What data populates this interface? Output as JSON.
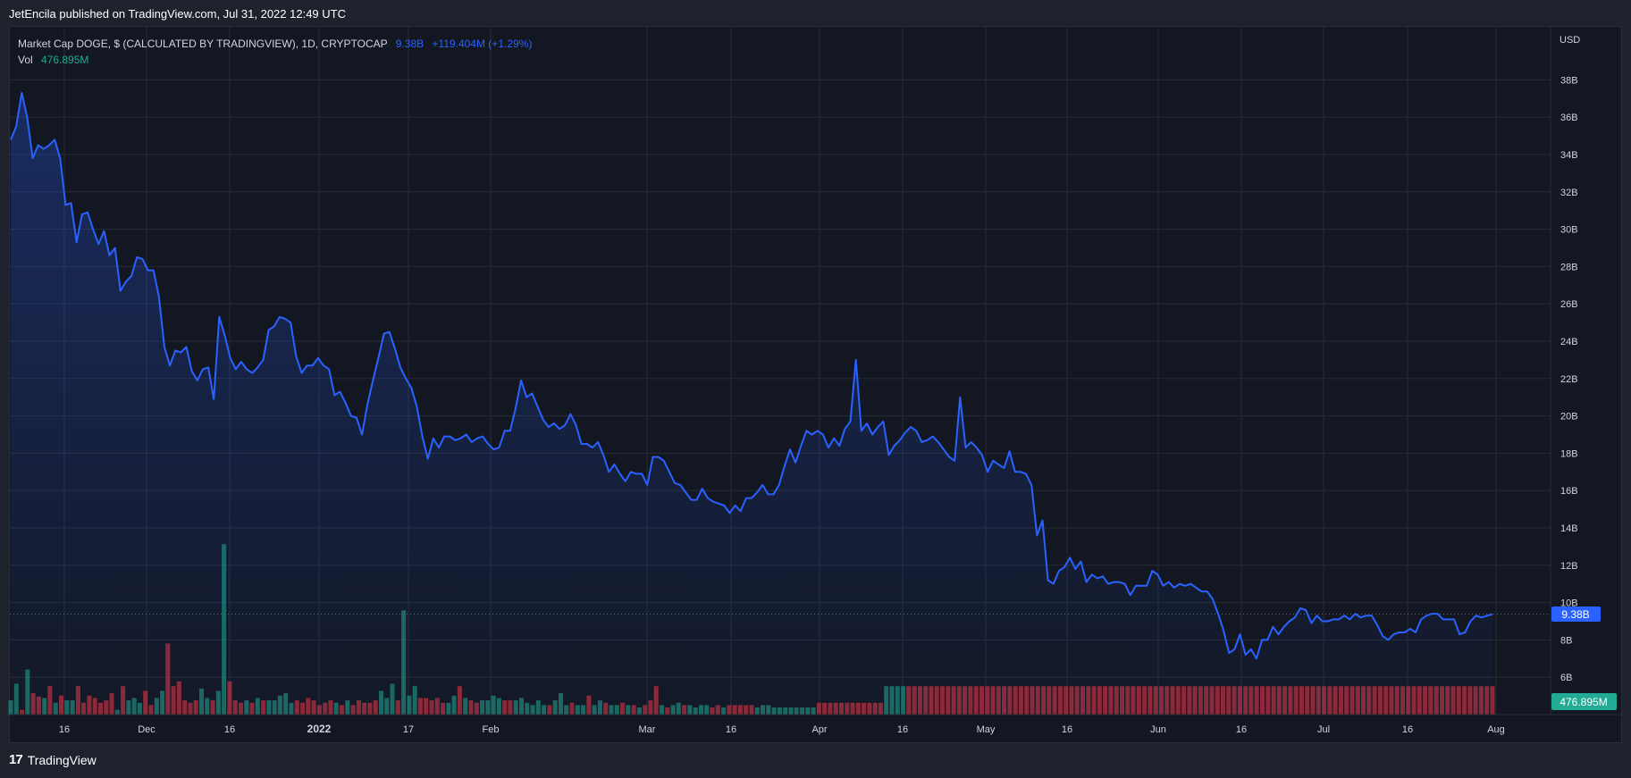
{
  "header": {
    "published": "JetEncila published on TradingView.com, Jul 31, 2022 12:49 UTC"
  },
  "legend": {
    "symbol": "Market Cap DOGE, $ (CALCULATED BY TRADINGVIEW), 1D, CRYPTOCAP",
    "last": "9.38B",
    "change": "+119.404M (+1.29%)",
    "vol_label": "Vol",
    "vol_value": "476.895M"
  },
  "footer": {
    "brand": "TradingView"
  },
  "colors": {
    "line": "#2962ff",
    "up": "#22ab94",
    "down": "#f23645",
    "bg": "#131722",
    "grid": "#262b37"
  },
  "chart_data": {
    "type": "line",
    "currency_label": "USD",
    "y_unit": "billions USD",
    "ylim": [
      4,
      41
    ],
    "y_ticks": [
      "6B",
      "8B",
      "10B",
      "12B",
      "14B",
      "16B",
      "18B",
      "20B",
      "22B",
      "24B",
      "26B",
      "28B",
      "30B",
      "32B",
      "34B",
      "36B",
      "38B"
    ],
    "x_ticks": [
      "16",
      "Dec",
      "16",
      "2022",
      "17",
      "Feb",
      "Mar",
      "16",
      "Apr",
      "16",
      "May",
      "16",
      "Jun",
      "16",
      "Jul",
      "16",
      "Aug"
    ],
    "last_price_label": "9.38B",
    "last_volume_label": "476.895M",
    "series": [
      {
        "values": [
          34.8,
          35.5,
          37.3,
          36.0,
          33.8,
          34.5,
          34.3,
          34.5,
          34.8,
          33.8,
          31.3,
          31.4,
          29.3,
          30.8,
          30.9,
          30.0,
          29.2,
          29.9,
          28.6,
          29.0,
          26.7,
          27.2,
          27.5,
          28.5,
          28.4,
          27.8,
          27.8,
          26.4,
          23.7,
          22.7,
          23.5,
          23.4,
          23.7,
          22.4,
          21.9,
          22.5,
          22.6,
          20.9,
          25.3,
          24.3,
          23.1,
          22.5,
          22.9,
          22.5,
          22.3,
          22.6,
          23.0,
          24.6,
          24.8,
          25.3,
          25.2,
          25.0,
          23.2,
          22.3,
          22.7,
          22.7,
          23.1,
          22.7,
          22.5,
          21.1,
          21.3,
          20.7,
          20.0,
          19.9,
          19.0,
          20.6,
          21.9,
          23.1,
          24.4,
          24.5,
          23.6,
          22.6,
          22.0,
          21.5,
          20.5,
          18.9,
          17.7,
          18.8,
          18.3,
          18.9,
          18.9,
          18.7,
          18.8,
          19.0,
          18.6,
          18.8,
          18.9,
          18.5,
          18.2,
          18.3,
          19.2,
          19.2,
          20.4,
          21.9,
          21.0,
          21.2,
          20.5,
          19.8,
          19.4,
          19.6,
          19.3,
          19.5,
          20.1,
          19.5,
          18.5,
          18.5,
          18.3,
          18.6,
          17.9,
          17.0,
          17.4,
          16.9,
          16.5,
          17.0,
          16.9,
          16.9,
          16.3,
          17.8,
          17.8,
          17.6,
          17.0,
          16.4,
          16.3,
          15.9,
          15.5,
          15.5,
          16.1,
          15.6,
          15.4,
          15.3,
          15.2,
          14.8,
          15.2,
          14.9,
          15.6,
          15.6,
          15.9,
          16.3,
          15.8,
          15.8,
          16.3,
          17.3,
          18.2,
          17.5,
          18.4,
          19.2,
          19.0,
          19.2,
          19.0,
          18.3,
          18.8,
          18.4,
          19.3,
          19.7,
          23.0,
          19.2,
          19.6,
          19.0,
          19.4,
          19.7,
          17.9,
          18.4,
          18.7,
          19.1,
          19.4,
          19.2,
          18.6,
          18.7,
          18.9,
          18.6,
          18.2,
          17.8,
          17.6,
          21.0,
          18.3,
          18.6,
          18.3,
          17.9,
          17.0,
          17.6,
          17.4,
          17.2,
          18.1,
          17.0,
          17.0,
          16.9,
          16.3,
          13.6,
          14.4,
          11.2,
          11.0,
          11.7,
          11.9,
          12.4,
          11.8,
          12.2,
          11.1,
          11.5,
          11.3,
          11.4,
          11.0,
          11.1,
          11.1,
          11.0,
          10.4,
          10.9,
          10.9,
          10.9,
          11.7,
          11.5,
          10.9,
          11.1,
          10.8,
          11.0,
          10.9,
          11.0,
          10.8,
          10.6,
          10.6,
          10.2,
          9.4,
          8.5,
          7.3,
          7.5,
          8.3,
          7.2,
          7.5,
          7.0,
          8.0,
          8.0,
          8.7,
          8.3,
          8.7,
          9.0,
          9.2,
          9.7,
          9.6,
          8.9,
          9.3,
          9.0,
          9.0,
          9.1,
          9.1,
          9.3,
          9.1,
          9.4,
          9.2,
          9.3,
          9.3,
          8.8,
          8.2,
          8.0,
          8.3,
          8.4,
          8.4,
          8.6,
          8.4,
          9.1,
          9.3,
          9.4,
          9.4,
          9.1,
          9.1,
          9.1,
          8.3,
          8.4,
          9.0,
          9.3,
          9.2,
          9.3,
          9.38
        ]
      }
    ],
    "volume": [
      [
        0.3,
        1
      ],
      [
        0.65,
        1
      ],
      [
        0.1,
        0
      ],
      [
        0.95,
        1
      ],
      [
        0.45,
        0
      ],
      [
        0.38,
        0
      ],
      [
        0.35,
        1
      ],
      [
        0.6,
        0
      ],
      [
        0.25,
        1
      ],
      [
        0.4,
        0
      ],
      [
        0.3,
        1
      ],
      [
        0.3,
        1
      ],
      [
        0.6,
        0
      ],
      [
        0.25,
        0
      ],
      [
        0.4,
        0
      ],
      [
        0.35,
        0
      ],
      [
        0.25,
        0
      ],
      [
        0.3,
        0
      ],
      [
        0.45,
        0
      ],
      [
        0.1,
        1
      ],
      [
        0.6,
        0
      ],
      [
        0.3,
        1
      ],
      [
        0.35,
        1
      ],
      [
        0.25,
        1
      ],
      [
        0.5,
        0
      ],
      [
        0.2,
        0
      ],
      [
        0.35,
        1
      ],
      [
        0.5,
        1
      ],
      [
        1.5,
        0
      ],
      [
        0.6,
        0
      ],
      [
        0.7,
        0
      ],
      [
        0.3,
        0
      ],
      [
        0.25,
        0
      ],
      [
        0.3,
        0
      ],
      [
        0.55,
        1
      ],
      [
        0.35,
        1
      ],
      [
        0.3,
        0
      ],
      [
        0.5,
        1
      ],
      [
        3.6,
        1
      ],
      [
        0.7,
        0
      ],
      [
        0.3,
        0
      ],
      [
        0.25,
        0
      ],
      [
        0.3,
        1
      ],
      [
        0.25,
        0
      ],
      [
        0.35,
        1
      ],
      [
        0.3,
        0
      ],
      [
        0.3,
        1
      ],
      [
        0.3,
        1
      ],
      [
        0.4,
        1
      ],
      [
        0.45,
        1
      ],
      [
        0.25,
        1
      ],
      [
        0.3,
        0
      ],
      [
        0.25,
        0
      ],
      [
        0.35,
        0
      ],
      [
        0.3,
        0
      ],
      [
        0.2,
        0
      ],
      [
        0.25,
        0
      ],
      [
        0.3,
        0
      ],
      [
        0.25,
        1
      ],
      [
        0.2,
        0
      ],
      [
        0.3,
        1
      ],
      [
        0.2,
        0
      ],
      [
        0.3,
        0
      ],
      [
        0.25,
        0
      ],
      [
        0.25,
        0
      ],
      [
        0.3,
        0
      ],
      [
        0.5,
        1
      ],
      [
        0.35,
        1
      ],
      [
        0.65,
        1
      ],
      [
        0.3,
        0
      ],
      [
        2.2,
        1
      ],
      [
        0.4,
        1
      ],
      [
        0.6,
        1
      ],
      [
        0.35,
        0
      ],
      [
        0.35,
        0
      ],
      [
        0.3,
        0
      ],
      [
        0.35,
        0
      ],
      [
        0.25,
        0
      ],
      [
        0.25,
        1
      ],
      [
        0.4,
        1
      ],
      [
        0.6,
        0
      ],
      [
        0.35,
        1
      ],
      [
        0.3,
        0
      ],
      [
        0.25,
        0
      ],
      [
        0.3,
        1
      ],
      [
        0.3,
        1
      ],
      [
        0.4,
        1
      ],
      [
        0.35,
        1
      ],
      [
        0.3,
        0
      ],
      [
        0.3,
        0
      ],
      [
        0.3,
        1
      ],
      [
        0.35,
        1
      ],
      [
        0.25,
        1
      ],
      [
        0.2,
        1
      ],
      [
        0.3,
        1
      ],
      [
        0.2,
        1
      ],
      [
        0.2,
        0
      ],
      [
        0.3,
        1
      ],
      [
        0.45,
        1
      ],
      [
        0.2,
        1
      ],
      [
        0.25,
        0
      ],
      [
        0.2,
        1
      ],
      [
        0.2,
        1
      ],
      [
        0.4,
        0
      ],
      [
        0.2,
        1
      ],
      [
        0.3,
        1
      ],
      [
        0.25,
        0
      ],
      [
        0.2,
        1
      ],
      [
        0.2,
        1
      ],
      [
        0.25,
        0
      ],
      [
        0.2,
        1
      ],
      [
        0.2,
        0
      ],
      [
        0.15,
        1
      ],
      [
        0.2,
        0
      ],
      [
        0.3,
        0
      ],
      [
        0.6,
        0
      ],
      [
        0.2,
        1
      ],
      [
        0.15,
        0
      ],
      [
        0.2,
        1
      ],
      [
        0.25,
        1
      ],
      [
        0.2,
        0
      ],
      [
        0.2,
        1
      ],
      [
        0.15,
        1
      ],
      [
        0.2,
        1
      ],
      [
        0.2,
        1
      ],
      [
        0.15,
        0
      ],
      [
        0.2,
        0
      ],
      [
        0.15,
        1
      ],
      [
        0.2,
        0
      ],
      [
        0.2,
        0
      ],
      [
        0.2,
        0
      ],
      [
        0.2,
        0
      ],
      [
        0.2,
        0
      ],
      [
        0.15,
        1
      ],
      [
        0.2,
        1
      ],
      [
        0.2,
        1
      ],
      [
        0.15,
        1
      ],
      [
        0.15,
        1
      ],
      [
        0.15,
        1
      ],
      [
        0.15,
        1
      ],
      [
        0.15,
        1
      ],
      [
        0.15,
        1
      ],
      [
        0.15,
        1
      ],
      [
        0.15,
        1
      ],
      [
        0.25,
        0
      ],
      [
        0.25,
        0
      ],
      [
        0.25,
        0
      ],
      [
        0.25,
        0
      ],
      [
        0.25,
        0
      ],
      [
        0.25,
        0
      ],
      [
        0.25,
        0
      ],
      [
        0.25,
        0
      ],
      [
        0.25,
        0
      ],
      [
        0.25,
        0
      ],
      [
        0.25,
        0
      ],
      [
        0.25,
        0
      ],
      [
        0.6,
        1
      ],
      [
        0.6,
        1
      ],
      [
        0.6,
        1
      ],
      [
        0.6,
        1
      ],
      [
        0.6,
        0
      ],
      [
        0.6,
        0
      ],
      [
        0.6,
        0
      ],
      [
        0.6,
        0
      ],
      [
        0.6,
        0
      ],
      [
        0.6,
        0
      ],
      [
        0.6,
        0
      ],
      [
        0.6,
        0
      ],
      [
        0.6,
        0
      ],
      [
        0.6,
        0
      ],
      [
        0.6,
        0
      ],
      [
        0.6,
        0
      ],
      [
        0.6,
        0
      ],
      [
        0.6,
        0
      ],
      [
        0.6,
        0
      ],
      [
        0.6,
        0
      ],
      [
        0.6,
        0
      ],
      [
        0.6,
        0
      ],
      [
        0.6,
        0
      ],
      [
        0.6,
        0
      ],
      [
        0.6,
        0
      ],
      [
        0.6,
        0
      ],
      [
        0.6,
        0
      ],
      [
        0.6,
        0
      ],
      [
        0.6,
        0
      ],
      [
        0.6,
        0
      ],
      [
        0.6,
        0
      ],
      [
        0.6,
        0
      ],
      [
        0.6,
        0
      ],
      [
        0.6,
        0
      ],
      [
        0.6,
        0
      ],
      [
        0.6,
        0
      ],
      [
        0.6,
        0
      ],
      [
        0.6,
        0
      ],
      [
        0.6,
        0
      ],
      [
        0.6,
        0
      ],
      [
        0.6,
        0
      ],
      [
        0.6,
        0
      ],
      [
        0.6,
        0
      ],
      [
        0.6,
        0
      ],
      [
        0.6,
        0
      ],
      [
        0.6,
        0
      ],
      [
        0.6,
        0
      ],
      [
        0.6,
        0
      ],
      [
        0.6,
        0
      ],
      [
        0.6,
        0
      ],
      [
        0.6,
        0
      ],
      [
        0.6,
        0
      ],
      [
        0.6,
        0
      ],
      [
        0.6,
        0
      ],
      [
        0.6,
        0
      ],
      [
        0.6,
        0
      ],
      [
        0.6,
        0
      ],
      [
        0.6,
        0
      ],
      [
        0.6,
        0
      ],
      [
        0.6,
        0
      ],
      [
        0.6,
        0
      ],
      [
        0.6,
        0
      ],
      [
        0.6,
        0
      ],
      [
        0.6,
        0
      ],
      [
        0.6,
        0
      ],
      [
        0.6,
        0
      ],
      [
        0.6,
        0
      ],
      [
        0.6,
        0
      ],
      [
        0.6,
        0
      ],
      [
        0.6,
        0
      ],
      [
        0.6,
        0
      ],
      [
        0.6,
        0
      ],
      [
        0.6,
        0
      ],
      [
        0.6,
        0
      ],
      [
        0.6,
        0
      ],
      [
        0.6,
        0
      ],
      [
        0.6,
        0
      ],
      [
        0.6,
        0
      ],
      [
        0.6,
        0
      ],
      [
        0.6,
        0
      ],
      [
        0.6,
        0
      ],
      [
        0.6,
        0
      ],
      [
        0.6,
        0
      ],
      [
        0.6,
        0
      ],
      [
        0.6,
        0
      ],
      [
        0.6,
        0
      ],
      [
        0.6,
        0
      ],
      [
        0.6,
        0
      ],
      [
        0.6,
        0
      ],
      [
        0.6,
        0
      ],
      [
        0.6,
        0
      ],
      [
        0.6,
        0
      ],
      [
        0.6,
        0
      ],
      [
        0.6,
        0
      ],
      [
        0.6,
        0
      ],
      [
        0.6,
        0
      ],
      [
        0.6,
        0
      ],
      [
        0.6,
        0
      ],
      [
        0.6,
        0
      ],
      [
        0.6,
        0
      ],
      [
        0.6,
        0
      ],
      [
        0.6,
        0
      ],
      [
        0.6,
        0
      ],
      [
        0.6,
        0
      ],
      [
        0.6,
        0
      ],
      [
        0.6,
        0
      ],
      [
        0.6,
        0
      ],
      [
        0.6,
        0
      ],
      [
        0.6,
        0
      ]
    ]
  }
}
